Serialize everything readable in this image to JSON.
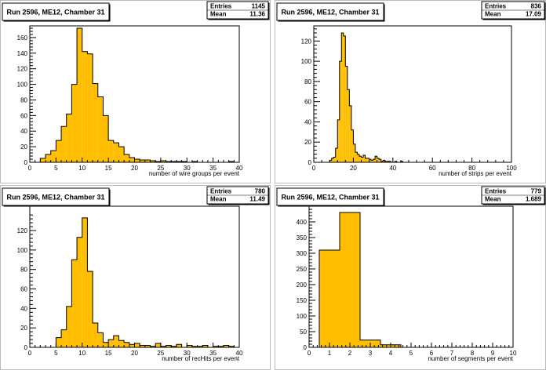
{
  "colors": {
    "fill": "#FFBF00",
    "stroke": "#000000",
    "background": "#FFFFFF"
  },
  "chart_data": [
    {
      "type": "bar",
      "title": "Run 2596, ME12, Chamber 31",
      "stats": {
        "entries_label": "Entries",
        "entries": "1145",
        "mean_label": "Mean",
        "mean": "11.36"
      },
      "xlabel": "number of wire groups per event",
      "xlim": [
        0,
        40
      ],
      "ylim": [
        0,
        175
      ],
      "xticks": [
        0,
        5,
        10,
        15,
        20,
        25,
        30,
        35,
        40
      ],
      "yticks": [
        0,
        20,
        40,
        60,
        80,
        100,
        120,
        140,
        160
      ],
      "bin_start": 2,
      "bin_width": 1,
      "values": [
        5,
        10,
        15,
        28,
        46,
        62,
        100,
        172,
        142,
        139,
        101,
        84,
        60,
        28,
        25,
        20,
        10,
        6,
        4,
        3,
        3,
        2,
        1,
        2,
        1,
        1,
        1,
        1,
        0,
        1,
        0,
        0,
        0,
        0,
        0,
        0,
        1
      ]
    },
    {
      "type": "bar",
      "title": "Run 2596, ME12, Chamber 31",
      "stats": {
        "entries_label": "Entries",
        "entries": "836",
        "mean_label": "Mean",
        "mean": "17.09"
      },
      "xlabel": "number of strips per event",
      "xlim": [
        0,
        100
      ],
      "ylim": [
        0,
        135
      ],
      "xticks": [
        0,
        20,
        40,
        60,
        80,
        100
      ],
      "yticks": [
        0,
        20,
        40,
        60,
        80,
        100,
        120
      ],
      "bin_start": 8,
      "bin_width": 1,
      "values": [
        2,
        4,
        5,
        14,
        42,
        100,
        128,
        125,
        95,
        72,
        56,
        32,
        18,
        10,
        8,
        6,
        5,
        7,
        4,
        4,
        3,
        2,
        3,
        6,
        4,
        3,
        1,
        2,
        1,
        1,
        1,
        0,
        0,
        1,
        0,
        0,
        1
      ]
    },
    {
      "type": "bar",
      "title": "Run 2596, ME12, Chamber 31",
      "stats": {
        "entries_label": "Entries",
        "entries": "780",
        "mean_label": "Mean",
        "mean": "11.49"
      },
      "xlabel": "number of recHits per event",
      "xlim": [
        0,
        40
      ],
      "ylim": [
        0,
        145
      ],
      "xticks": [
        0,
        5,
        10,
        15,
        20,
        25,
        30,
        35,
        40
      ],
      "yticks": [
        0,
        20,
        40,
        60,
        80,
        100,
        120
      ],
      "bin_start": 5,
      "bin_width": 1,
      "values": [
        10,
        18,
        42,
        90,
        113,
        133,
        78,
        25,
        15,
        5,
        8,
        12,
        7,
        5,
        3,
        4,
        2,
        2,
        1,
        4,
        1,
        2,
        1,
        3,
        0,
        2,
        1,
        1,
        2,
        0,
        1,
        1,
        2,
        1
      ]
    },
    {
      "type": "bar",
      "title": "Run 2596, ME12, Chamber 31",
      "stats": {
        "entries_label": "Entries",
        "entries": "779",
        "mean_label": "Mean",
        "mean": "1.689"
      },
      "xlabel": "number of segments per event",
      "xlim": [
        0,
        10
      ],
      "ylim": [
        0,
        450
      ],
      "xticks": [
        0,
        1,
        2,
        3,
        4,
        5,
        6,
        7,
        8,
        9,
        10
      ],
      "yticks": [
        0,
        50,
        100,
        150,
        200,
        250,
        300,
        350,
        400
      ],
      "bin_start": 0.5,
      "bin_width": 1,
      "values": [
        310,
        430,
        23,
        8
      ]
    }
  ]
}
